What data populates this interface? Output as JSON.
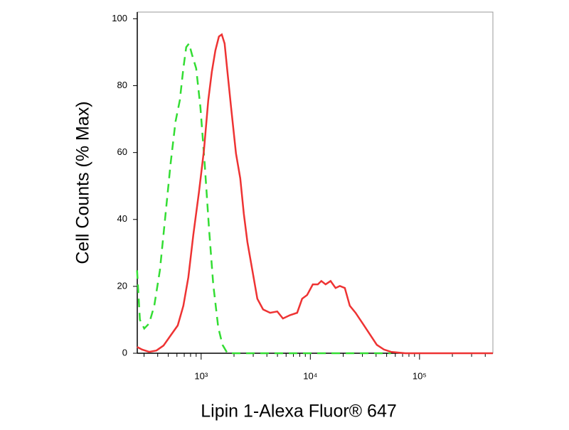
{
  "chart_data": {
    "type": "line",
    "x_label": "Lipin 1-Alexa Fluor® 647",
    "y_label": "Cell Counts (% Max)",
    "xscale": "log",
    "xlim": [
      260,
      470000
    ],
    "ylim": [
      0,
      102
    ],
    "xticks": [
      {
        "value": 1000,
        "label": "10³"
      },
      {
        "value": 10000,
        "label": "10⁴"
      },
      {
        "value": 100000,
        "label": "10⁵"
      }
    ],
    "xminorticks": [
      300,
      400,
      500,
      600,
      700,
      800,
      900,
      2000,
      3000,
      4000,
      5000,
      6000,
      7000,
      8000,
      9000,
      20000,
      30000,
      40000,
      50000,
      60000,
      70000,
      80000,
      90000,
      200000,
      300000,
      400000
    ],
    "yticks": [
      0,
      20,
      40,
      60,
      80,
      100
    ],
    "series": [
      {
        "color": "#ee3333",
        "dash": false,
        "x": [
          259,
          288,
          334,
          389,
          452,
          525,
          610,
          687,
          763,
          848,
          955,
          1062,
          1161,
          1252,
          1349,
          1455,
          1545,
          1641,
          1742,
          1879,
          2084,
          2281,
          2460,
          2650,
          2944,
          3272,
          3690,
          4285,
          4977,
          5610,
          6520,
          7570,
          8413,
          9348,
          10540,
          11700,
          12620,
          13800,
          15340,
          17030,
          18630,
          20700,
          23000,
          25950,
          30150,
          35020,
          40670,
          47240,
          54870,
          74100,
          469000
        ],
        "values": [
          1.9,
          1.1,
          0.4,
          0.8,
          2.3,
          5.3,
          8.3,
          14.2,
          22.7,
          35.4,
          48.1,
          60.8,
          75.6,
          84.1,
          90.5,
          94.7,
          95.3,
          92.6,
          84.1,
          73.5,
          59.7,
          52.3,
          41.7,
          33.3,
          24.8,
          16.3,
          13.1,
          12.1,
          12.5,
          10.4,
          11.4,
          12.1,
          16.3,
          17.4,
          20.6,
          20.6,
          21.6,
          20.6,
          21.6,
          19.5,
          20.1,
          19.5,
          14.2,
          12.1,
          8.9,
          5.7,
          2.5,
          1.1,
          0.4,
          0,
          0
        ]
      },
      {
        "color": "#33dd33",
        "dash": true,
        "x": [
          259,
          275,
          301,
          334,
          372,
          419,
          472,
          525,
          583,
          638,
          687,
          730,
          775,
          823,
          900,
          985,
          1078,
          1180,
          1291,
          1433,
          1568,
          1742,
          54870
        ],
        "values": [
          24.8,
          10.0,
          7.4,
          8.9,
          14.2,
          24.8,
          41.7,
          56.6,
          69.3,
          75.6,
          85.2,
          91.5,
          92.6,
          89.4,
          85.2,
          73.5,
          56.6,
          37.5,
          20.6,
          7.8,
          2.5,
          0,
          0
        ]
      }
    ]
  }
}
